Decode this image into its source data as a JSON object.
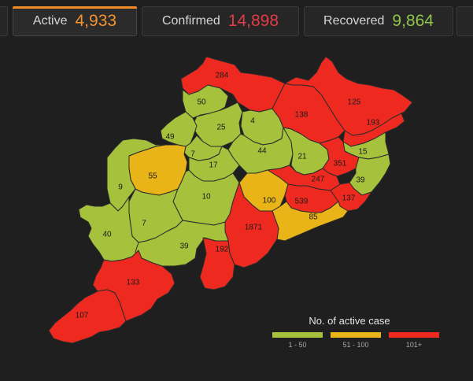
{
  "tabs": [
    {
      "label": "Active",
      "value": "4,933",
      "color": "#f5922f"
    },
    {
      "label": "Confirmed",
      "value": "14,898",
      "color": "#e23a46"
    },
    {
      "label": "Recovered",
      "value": "9,864",
      "color": "#8fc54a"
    }
  ],
  "colors": {
    "low": "#a6c13c",
    "mid": "#e8b418",
    "high": "#ee2a20"
  },
  "districts": [
    {
      "value": "284",
      "level": "high"
    },
    {
      "value": "50",
      "level": "low"
    },
    {
      "value": "125",
      "level": "high"
    },
    {
      "value": "25",
      "level": "low"
    },
    {
      "value": "4",
      "level": "low"
    },
    {
      "value": "138",
      "level": "high"
    },
    {
      "value": "193",
      "level": "high"
    },
    {
      "value": "49",
      "level": "low"
    },
    {
      "value": "7",
      "level": "low"
    },
    {
      "value": "44",
      "level": "low"
    },
    {
      "value": "15",
      "level": "low"
    },
    {
      "value": "55",
      "level": "mid"
    },
    {
      "value": "17",
      "level": "low"
    },
    {
      "value": "21",
      "level": "low"
    },
    {
      "value": "351",
      "level": "high"
    },
    {
      "value": "9",
      "level": "low"
    },
    {
      "value": "247",
      "level": "high"
    },
    {
      "value": "39",
      "level": "low"
    },
    {
      "value": "10",
      "level": "low"
    },
    {
      "value": "100",
      "level": "mid"
    },
    {
      "value": "539",
      "level": "high"
    },
    {
      "value": "137",
      "level": "high"
    },
    {
      "value": "85",
      "level": "mid"
    },
    {
      "value": "7",
      "level": "low"
    },
    {
      "value": "40",
      "level": "low"
    },
    {
      "value": "1871",
      "level": "high"
    },
    {
      "value": "39",
      "level": "low"
    },
    {
      "value": "192",
      "level": "high"
    },
    {
      "value": "133",
      "level": "high"
    },
    {
      "value": "107",
      "level": "high"
    }
  ],
  "legend": {
    "title": "No. of active case",
    "items": [
      {
        "label": "1 - 50",
        "color": "#a6c13c"
      },
      {
        "label": "51 - 100",
        "color": "#e8b418"
      },
      {
        "label": "101+",
        "color": "#ee2a20"
      }
    ]
  }
}
